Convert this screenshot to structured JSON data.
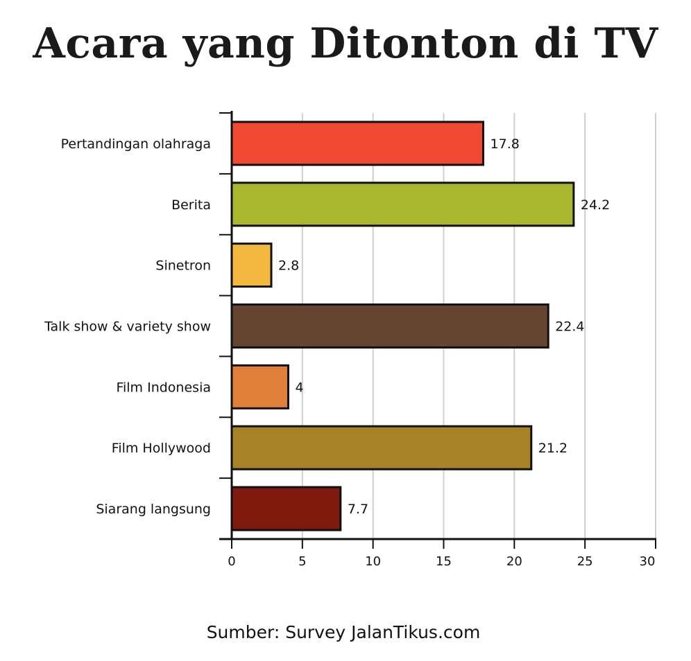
{
  "chart_data": {
    "type": "bar",
    "orientation": "horizontal",
    "title": "Acara yang Ditonton di TV",
    "source": "Sumber: Survey JalanTikus.com",
    "categories": [
      "Pertandingan olahraga",
      "Berita",
      "Sinetron",
      "Talk show & variety show",
      "Film Indonesia",
      "Film Hollywood",
      "Siarang langsung"
    ],
    "values": [
      17.8,
      24.2,
      2.8,
      22.4,
      4,
      21.2,
      7.7
    ],
    "value_labels": [
      "17.8",
      "24.2",
      "2.8",
      "22.4",
      "4",
      "21.2",
      "7.7"
    ],
    "colors": [
      "#f04a35",
      "#a8b630",
      "#f2b840",
      "#654532",
      "#e07f3a",
      "#a88228",
      "#7e1a0e"
    ],
    "xlim": [
      0,
      30
    ],
    "xticks": [
      0,
      5,
      10,
      15,
      20,
      25,
      30
    ],
    "xtick_labels": [
      "0",
      "5",
      "10",
      "15",
      "20",
      "25",
      "30"
    ],
    "grid": "vertical"
  }
}
